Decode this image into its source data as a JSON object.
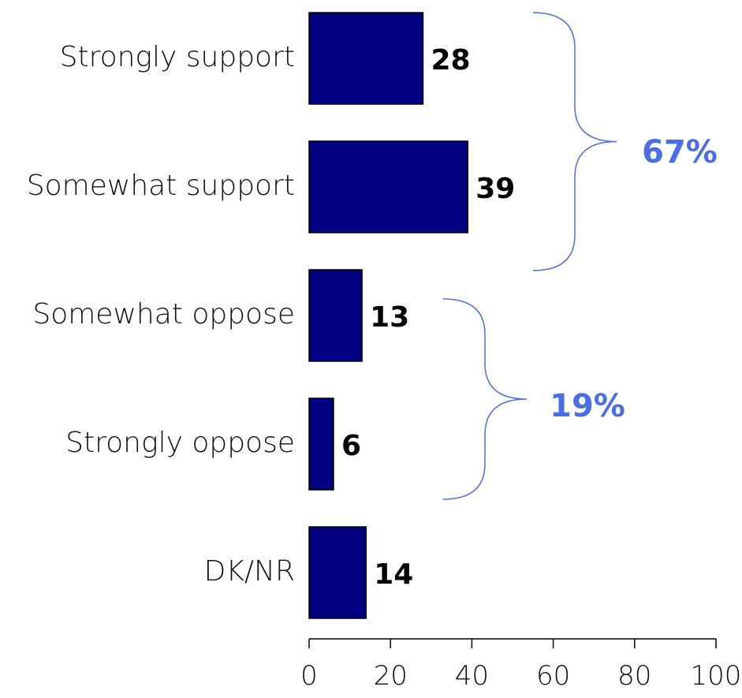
{
  "chart_data": {
    "type": "bar",
    "orientation": "horizontal",
    "categories": [
      "Strongly support",
      "Somewhat support",
      "Somewhat oppose",
      "Strongly oppose",
      "DK/NR"
    ],
    "values": [
      28,
      39,
      13,
      6,
      14
    ],
    "title": "",
    "xlabel": "",
    "ylabel": "",
    "xlim": [
      0,
      100
    ],
    "x_ticks": [
      0,
      20,
      40,
      60,
      80,
      100
    ],
    "grid": false,
    "bar_color": "#000080",
    "annotations": [
      {
        "label": "67%",
        "spans_categories": [
          "Strongly support",
          "Somewhat support"
        ],
        "color": "#4a6ee8"
      },
      {
        "label": "19%",
        "spans_categories": [
          "Somewhat oppose",
          "Strongly oppose"
        ],
        "color": "#4a6ee8"
      }
    ]
  }
}
